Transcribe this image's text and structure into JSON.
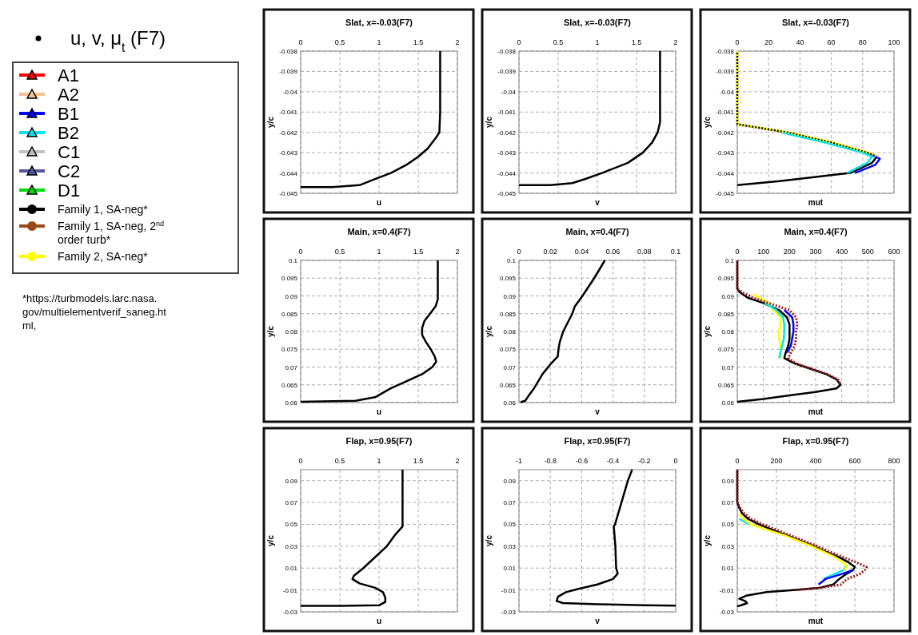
{
  "chart_data": [
    {
      "type": "other",
      "title": "u, v, μ$_{t}$ (F7)",
      "legend": "top left",
      "annotations": [
        "*https://turbmodels.larc.nasa.gov/multielementverif_saneg.html,"
      ],
      "series": [
        {
          "name": "A1",
          "color": "#ff0000",
          "marker": "triangle"
        },
        {
          "name": "A2",
          "color": "#f4c28f",
          "marker": "triangle"
        },
        {
          "name": "B1",
          "color": "#0000ff",
          "marker": "triangle"
        },
        {
          "name": "B2",
          "color": "#00e5ee",
          "marker": "triangle"
        },
        {
          "name": "C1",
          "color": "#bfbfbf",
          "marker": "triangle"
        },
        {
          "name": "C2",
          "color": "#56569e",
          "marker": "triangle"
        },
        {
          "name": "D1",
          "color": "#00dd00",
          "marker": "triangle"
        },
        {
          "name": "Family 1, SA-neg*",
          "color": "#000000",
          "marker": "circle"
        },
        {
          "name": "Family 1, SA-neg, 2$^{nd}$ order turb*",
          "color": "#9a4a1a",
          "marker": "circle"
        },
        {
          "name": "Family 2, SA-neg*",
          "color": "#ffff00",
          "marker": "circle"
        }
      ]
    },
    {
      "type": "line",
      "title": "Slat, x=-0.03(F7)",
      "xlabel": "u",
      "ylabel": "y/c",
      "xlim": [
        0,
        2
      ],
      "xticks": [
        0,
        0.5,
        1,
        1.5,
        2
      ],
      "ylim": [
        -0.045,
        -0.038
      ],
      "yticks": [
        -0.045,
        -0.044,
        -0.043,
        -0.042,
        -0.041,
        -0.04,
        -0.039,
        -0.038
      ],
      "grid": true,
      "series": [
        {
          "color": "#000000",
          "line_style": "solid",
          "x": [
            1.78,
            1.78,
            1.77,
            1.72,
            1.62,
            1.5,
            1.35,
            1.15,
            0.95,
            0.75,
            0.4,
            0
          ],
          "values": [
            -0.038,
            -0.041,
            -0.042,
            -0.0423,
            -0.0428,
            -0.0432,
            -0.0436,
            -0.044,
            -0.0443,
            -0.0446,
            -0.0447,
            -0.0447
          ]
        }
      ]
    },
    {
      "type": "line",
      "title": "Slat, x=-0.03(F7)",
      "xlabel": "v",
      "ylabel": "y/c",
      "xlim": [
        0,
        2
      ],
      "xticks": [
        0,
        0.5,
        1,
        1.5,
        2
      ],
      "ylim": [
        -0.045,
        -0.038
      ],
      "yticks": [
        -0.045,
        -0.044,
        -0.043,
        -0.042,
        -0.041,
        -0.04,
        -0.039,
        -0.038
      ],
      "grid": true,
      "series": [
        {
          "color": "#000000",
          "line_style": "solid",
          "x": [
            1.8,
            1.8,
            1.77,
            1.7,
            1.58,
            1.39,
            1.06,
            0.84,
            0.68,
            0.4,
            0
          ],
          "values": [
            -0.038,
            -0.0415,
            -0.042,
            -0.0425,
            -0.043,
            -0.0435,
            -0.044,
            -0.0443,
            -0.0445,
            -0.0446,
            -0.0446
          ]
        }
      ]
    },
    {
      "type": "line",
      "title": "Slat, x=-0.03(F7)",
      "xlabel": "mut",
      "ylabel": "y/c",
      "xlim": [
        0,
        100
      ],
      "xticks": [
        0,
        20,
        40,
        60,
        80,
        100
      ],
      "ylim": [
        -0.045,
        -0.038
      ],
      "yticks": [
        -0.045,
        -0.044,
        -0.043,
        -0.042,
        -0.041,
        -0.04,
        -0.039,
        -0.038
      ],
      "grid": true,
      "series": [
        {
          "color": "#000000",
          "line_style": "solid",
          "x": [
            0,
            0,
            32,
            60,
            83,
            89,
            86,
            72,
            49,
            27,
            0
          ],
          "values": [
            -0.038,
            -0.0416,
            -0.042,
            -0.0425,
            -0.043,
            -0.0432,
            -0.0435,
            -0.044,
            -0.0442,
            -0.0444,
            -0.0446
          ]
        },
        {
          "color": "#00e5ee",
          "line_style": "solid",
          "x": [
            28,
            56,
            80,
            86,
            83,
            70
          ],
          "values": [
            -0.042,
            -0.0425,
            -0.043,
            -0.0432,
            -0.0435,
            -0.044
          ]
        },
        {
          "color": "#0000ff",
          "line_style": "solid",
          "x": [
            86,
            91,
            88,
            75
          ],
          "values": [
            -0.0431,
            -0.0433,
            -0.0436,
            -0.044
          ]
        },
        {
          "color": "#ffff00",
          "line_style": "dotted",
          "x": [
            0,
            0,
            33,
            61,
            84,
            90
          ],
          "values": [
            -0.038,
            -0.0416,
            -0.042,
            -0.0425,
            -0.043,
            -0.0432
          ]
        }
      ]
    },
    {
      "type": "line",
      "title": "Main, x=0.4(F7)",
      "xlabel": "u",
      "ylabel": "y/c",
      "xlim": [
        0,
        2
      ],
      "xticks": [
        0,
        0.5,
        1,
        1.5,
        2
      ],
      "ylim": [
        0.06,
        0.1
      ],
      "yticks": [
        0.06,
        0.065,
        0.07,
        0.075,
        0.08,
        0.085,
        0.09,
        0.095,
        0.1
      ],
      "grid": true,
      "series": [
        {
          "color": "#000000",
          "line_style": "solid",
          "x": [
            1.75,
            1.75,
            1.72,
            1.65,
            1.58,
            1.55,
            1.55,
            1.6,
            1.66,
            1.71,
            1.73,
            1.68,
            1.55,
            1.35,
            1.15,
            0.95,
            0.7,
            0
          ],
          "values": [
            0.1,
            0.089,
            0.087,
            0.085,
            0.083,
            0.081,
            0.079,
            0.077,
            0.075,
            0.073,
            0.0715,
            0.07,
            0.068,
            0.066,
            0.064,
            0.0615,
            0.0605,
            0.0602
          ]
        }
      ]
    },
    {
      "type": "line",
      "title": "Main, x=0.4(F7)",
      "xlabel": "v",
      "ylabel": "y/c",
      "xlim": [
        0,
        0.1
      ],
      "xticks": [
        0,
        0.02,
        0.04,
        0.06,
        0.08,
        0.1
      ],
      "ylim": [
        0.06,
        0.1
      ],
      "yticks": [
        0.06,
        0.065,
        0.07,
        0.075,
        0.08,
        0.085,
        0.09,
        0.095,
        0.1
      ],
      "grid": true,
      "series": [
        {
          "color": "#000000",
          "line_style": "solid",
          "x": [
            0.0548,
            0.048,
            0.0405,
            0.0356,
            0.034,
            0.0282,
            0.026,
            0.0252,
            0.0248,
            0.0205,
            0.015,
            0.0123,
            0.0096,
            0.0063,
            0.004,
            0.001
          ],
          "values": [
            0.1,
            0.095,
            0.09,
            0.087,
            0.085,
            0.08,
            0.077,
            0.075,
            0.073,
            0.071,
            0.068,
            0.066,
            0.064,
            0.062,
            0.0605,
            0.0601
          ]
        }
      ]
    },
    {
      "type": "line",
      "title": "Main, x=0.4(F7)",
      "xlabel": "mut",
      "ylabel": "y/c",
      "xlim": [
        0,
        600
      ],
      "xticks": [
        0,
        100,
        200,
        300,
        400,
        500,
        600
      ],
      "ylim": [
        0.06,
        0.1
      ],
      "yticks": [
        0.06,
        0.065,
        0.07,
        0.075,
        0.08,
        0.085,
        0.09,
        0.095,
        0.1
      ],
      "grid": true,
      "series": [
        {
          "color": "#000000",
          "line_style": "solid",
          "x": [
            0,
            0,
            10,
            40,
            100,
            160,
            190,
            200,
            200,
            200,
            195,
            185,
            180,
            220,
            280,
            340,
            380,
            395,
            380,
            300,
            200,
            100,
            0
          ],
          "values": [
            0.1,
            0.092,
            0.091,
            0.0895,
            0.088,
            0.086,
            0.084,
            0.082,
            0.08,
            0.078,
            0.076,
            0.074,
            0.0725,
            0.071,
            0.0695,
            0.068,
            0.0665,
            0.065,
            0.064,
            0.063,
            0.062,
            0.061,
            0.0602
          ]
        },
        {
          "color": "#ffff00",
          "line_style": "solid",
          "x": [
            60,
            110,
            140,
            165,
            165,
            160,
            160,
            165,
            165,
            165
          ],
          "values": [
            0.0905,
            0.0885,
            0.086,
            0.084,
            0.082,
            0.08,
            0.078,
            0.076,
            0.074,
            0.0725
          ]
        },
        {
          "color": "#00e5ee",
          "line_style": "solid",
          "x": [
            105,
            150,
            175,
            180,
            180,
            178,
            172,
            165,
            160
          ],
          "values": [
            0.088,
            0.086,
            0.084,
            0.082,
            0.08,
            0.078,
            0.076,
            0.074,
            0.0725
          ]
        },
        {
          "color": "#0000ff",
          "line_style": "solid",
          "x": [
            180,
            210,
            215,
            215,
            210,
            205,
            190
          ],
          "values": [
            0.086,
            0.084,
            0.082,
            0.08,
            0.078,
            0.076,
            0.074
          ]
        },
        {
          "color": "#9a1a1a",
          "line_style": "dotted",
          "x": [
            0,
            0,
            20,
            60,
            120,
            200,
            225,
            230,
            225,
            225,
            220,
            205,
            195,
            225,
            285,
            345,
            385,
            398
          ],
          "values": [
            0.1,
            0.092,
            0.091,
            0.0895,
            0.088,
            0.086,
            0.084,
            0.082,
            0.08,
            0.078,
            0.076,
            0.074,
            0.0725,
            0.071,
            0.0695,
            0.068,
            0.0665,
            0.065
          ]
        }
      ]
    },
    {
      "type": "line",
      "title": "Flap, x=0.95(F7)",
      "xlabel": "u",
      "ylabel": "y/c",
      "xlim": [
        0,
        2
      ],
      "xticks": [
        0,
        0.5,
        1,
        1.5,
        2
      ],
      "ylim": [
        -0.03,
        0.1
      ],
      "yticks": [
        -0.03,
        -0.01,
        0.01,
        0.03,
        0.05,
        0.07,
        0.09
      ],
      "grid": true,
      "series": [
        {
          "color": "#000000",
          "line_style": "solid",
          "x": [
            1.3,
            1.3,
            1.2,
            1.1,
            0.95,
            0.8,
            0.68,
            0.66,
            0.75,
            0.95,
            1.05,
            1.08,
            1.08,
            1.0,
            0.5,
            0
          ],
          "values": [
            0.1,
            0.048,
            0.04,
            0.03,
            0.02,
            0.01,
            0.003,
            0,
            -0.004,
            -0.008,
            -0.012,
            -0.017,
            -0.021,
            -0.024,
            -0.0245,
            -0.0245
          ]
        }
      ]
    },
    {
      "type": "line",
      "title": "Flap, x=0.95(F7)",
      "xlabel": "v",
      "ylabel": "y/c",
      "xlim": [
        -1,
        0
      ],
      "xticks": [
        -1,
        -0.8,
        -0.6,
        -0.4,
        -0.2,
        0
      ],
      "ylim": [
        -0.03,
        0.1
      ],
      "yticks": [
        -0.03,
        -0.01,
        0.01,
        0.03,
        0.05,
        0.07,
        0.09
      ],
      "grid": true,
      "series": [
        {
          "color": "#000000",
          "line_style": "solid",
          "x": [
            -0.278,
            -0.305,
            -0.346,
            -0.387,
            -0.395,
            -0.385,
            -0.38,
            -0.37,
            -0.4,
            -0.5,
            -0.62,
            -0.7,
            -0.75,
            -0.76,
            -0.72,
            -0.5,
            -0.2,
            0
          ],
          "values": [
            0.1,
            0.09,
            0.07,
            0.05,
            0.048,
            0.03,
            0.01,
            0.005,
            0,
            -0.005,
            -0.009,
            -0.012,
            -0.016,
            -0.02,
            -0.022,
            -0.023,
            -0.024,
            -0.0243
          ]
        }
      ]
    },
    {
      "type": "line",
      "title": "Flap, x=0.95(F7)",
      "xlabel": "mut",
      "ylabel": "y/c",
      "xlim": [
        0,
        800
      ],
      "xticks": [
        0,
        200,
        400,
        600,
        800
      ],
      "ylim": [
        -0.03,
        0.1
      ],
      "yticks": [
        -0.03,
        -0.01,
        0.01,
        0.03,
        0.05,
        0.07,
        0.09
      ],
      "grid": true,
      "series": [
        {
          "color": "#000000",
          "line_style": "solid",
          "x": [
            0,
            0,
            10,
            25,
            55,
            110,
            180,
            250,
            320,
            390,
            450,
            520,
            570,
            600,
            590,
            560,
            520,
            490,
            420,
            300,
            150,
            50,
            10,
            40,
            50,
            20,
            0
          ],
          "values": [
            0.1,
            0.07,
            0.065,
            0.06,
            0.055,
            0.05,
            0.045,
            0.04,
            0.035,
            0.03,
            0.025,
            0.02,
            0.015,
            0.011,
            0.008,
            0.005,
            0,
            -0.005,
            -0.008,
            -0.01,
            -0.012,
            -0.015,
            -0.018,
            -0.02,
            -0.022,
            -0.024,
            -0.025
          ]
        },
        {
          "color": "#00e5ee",
          "line_style": "solid",
          "x": [
            10,
            60,
            150,
            240,
            310,
            380,
            440,
            500,
            540,
            555,
            540,
            440
          ],
          "values": [
            0.055,
            0.05,
            null,
            null,
            null,
            null,
            null,
            null,
            null,
            0.012,
            0.008,
            0
          ]
        },
        {
          "color": "#ffff00",
          "line_style": "solid",
          "x": [
            10,
            30,
            70,
            150,
            240,
            310,
            380,
            440,
            500,
            540,
            560,
            545
          ],
          "values": [
            0.06,
            0.055,
            0.05,
            0.045,
            0.04,
            0.035,
            0.03,
            0.025,
            0.02,
            0.015,
            0.012,
            0.008
          ]
        },
        {
          "color": "#0000ff",
          "line_style": "solid",
          "x": [
            585,
            540,
            450,
            415
          ],
          "values": [
            0.008,
            0.005,
            0,
            -0.005
          ]
        },
        {
          "color": "#9a1a1a",
          "line_style": "dotted",
          "x": [
            0,
            0,
            15,
            35,
            70,
            130,
            200,
            270,
            340,
            410,
            470,
            540,
            610,
            660,
            650,
            630,
            560,
            530,
            430,
            300
          ],
          "values": [
            0.1,
            0.07,
            0.065,
            0.06,
            0.055,
            0.05,
            0.045,
            0.04,
            0.035,
            0.03,
            0.025,
            0.02,
            0.015,
            0.011,
            0.008,
            0.005,
            0,
            -0.005,
            -0.008,
            -0.01
          ]
        }
      ]
    }
  ]
}
